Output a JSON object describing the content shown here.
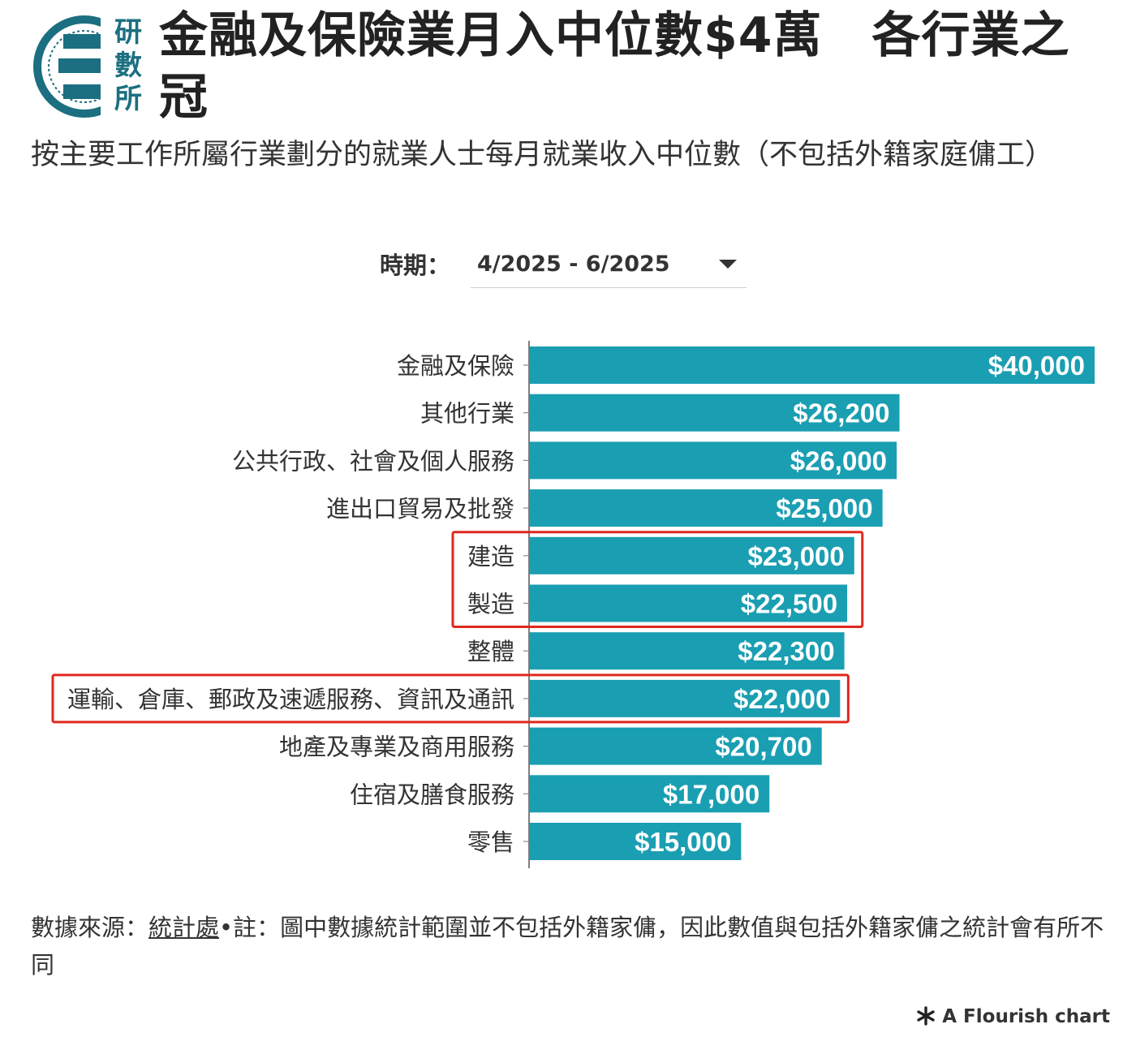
{
  "header": {
    "logo_text": [
      "研",
      "數",
      "所"
    ],
    "title": "金融及保險業月入中位數$4萬　各行業之冠",
    "subtitle": "按主要工作所屬行業劃分的就業人士每月就業收入中位數（不包括外籍家庭傭工）"
  },
  "controls": {
    "period_label": "時期：",
    "period_value": "4/2025 - 6/2025"
  },
  "chart_data": {
    "type": "bar",
    "orientation": "horizontal",
    "title": "",
    "xlabel": "",
    "ylabel": "",
    "categories": [
      "金融及保險",
      "其他行業",
      "公共行政、社會及個人服務",
      "進出口貿易及批發",
      "建造",
      "製造",
      "整體",
      "運輸、倉庫、郵政及速遞服務、資訊及通訊",
      "地產及專業及商用服務",
      "住宿及膳食服務",
      "零售"
    ],
    "values": [
      40000,
      26200,
      26000,
      25000,
      23000,
      22500,
      22300,
      22000,
      20700,
      17000,
      15000
    ],
    "data_labels": [
      "$40,000",
      "$26,200",
      "$26,000",
      "$25,000",
      "$23,000",
      "$22,500",
      "$22,300",
      "$22,000",
      "$20,700",
      "$17,000",
      "$15,000"
    ],
    "xlim": [
      0,
      40000
    ],
    "bar_color": "#1a9eb2",
    "highlight_color": "#e0281e",
    "highlight_groups": [
      [
        4,
        5
      ],
      [
        7
      ]
    ]
  },
  "footer": {
    "source_label": "數據來源：",
    "source_link": "統計處",
    "note": "•註：圖中數據統計範圍並不包括外籍家傭，因此數值與包括外籍家傭之統計會有所不同",
    "credit_icon": "asterisk-icon",
    "credit": "A Flourish chart"
  }
}
